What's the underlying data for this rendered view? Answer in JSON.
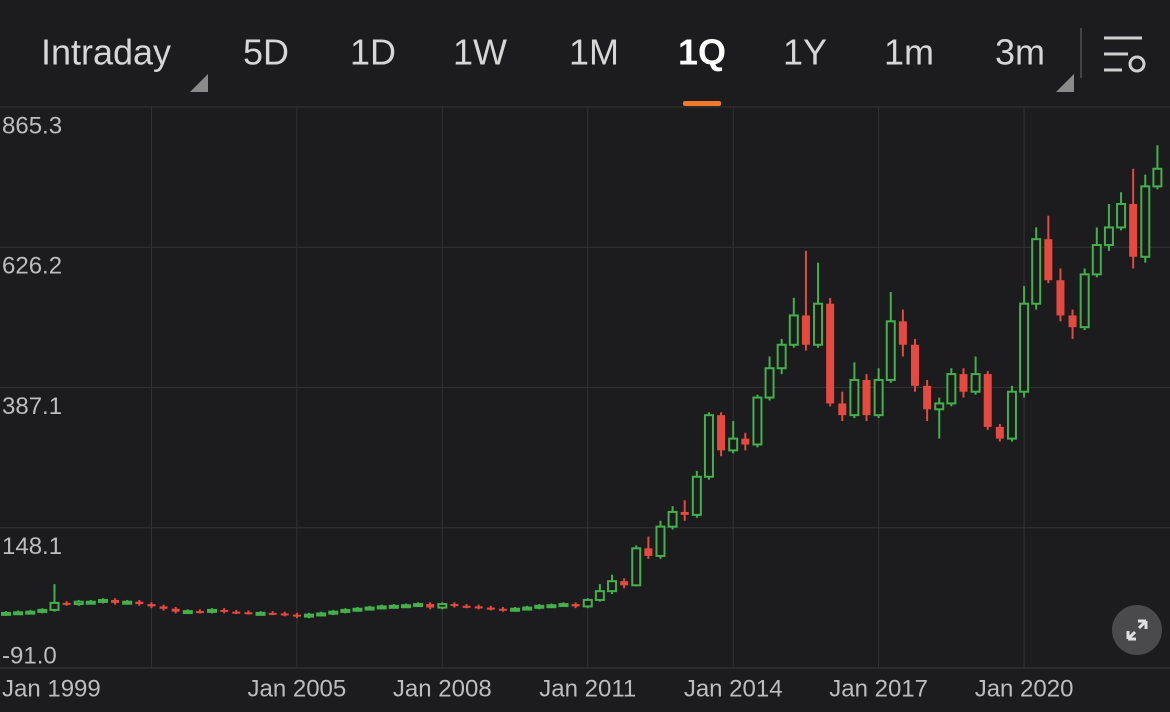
{
  "tabs": [
    "Intraday",
    "5D",
    "1D",
    "1W",
    "1M",
    "1Q",
    "1Y",
    "1m",
    "3m"
  ],
  "active_tab": 5,
  "chart_data": {
    "type": "candlestick",
    "up_color": "#43b04c",
    "down_color": "#e5493f",
    "grid": true,
    "ylim": [
      -91,
      865.3
    ],
    "yticks": [
      865.3,
      626.2,
      387.1,
      148.1,
      {
        "value": -91,
        "label": "-91.0"
      }
    ],
    "categories": [
      "Jan 1999",
      null,
      null,
      null,
      null,
      null,
      null,
      null,
      null,
      null,
      null,
      null,
      null,
      null,
      null,
      null,
      null,
      null,
      null,
      null,
      null,
      null,
      null,
      null,
      "Jan 2005",
      null,
      null,
      null,
      null,
      null,
      null,
      null,
      null,
      null,
      null,
      null,
      "Jan 2008",
      null,
      null,
      null,
      null,
      null,
      null,
      null,
      null,
      null,
      null,
      null,
      "Jan 2011",
      null,
      null,
      null,
      null,
      null,
      null,
      null,
      null,
      null,
      null,
      null,
      "Jan 2014",
      null,
      null,
      null,
      null,
      null,
      null,
      null,
      null,
      null,
      null,
      null,
      "Jan 2017",
      null,
      null,
      null,
      null,
      null,
      null,
      null,
      null,
      null,
      null,
      null,
      "Jan 2020",
      null,
      null,
      null,
      null,
      null,
      null,
      null,
      null,
      null,
      null,
      null
    ],
    "open": [
      1,
      3,
      4,
      5,
      8,
      20,
      18,
      22,
      22,
      25,
      20,
      22,
      18,
      14,
      10,
      5,
      6,
      5,
      8,
      5,
      4,
      3,
      3,
      2,
      0,
      -3,
      0,
      2,
      5,
      8,
      10,
      12,
      14,
      15,
      16,
      18,
      12,
      18,
      15,
      14,
      12,
      10,
      8,
      10,
      12,
      15,
      16,
      18,
      14,
      25,
      40,
      57,
      50,
      113,
      100,
      150,
      175,
      170,
      235,
      340,
      280,
      300,
      290,
      370,
      420,
      460,
      510,
      460,
      530,
      360,
      340,
      400,
      340,
      400,
      500,
      460,
      390,
      350,
      360,
      410,
      380,
      410,
      320,
      300,
      380,
      530,
      640,
      570,
      510,
      490,
      580,
      630,
      660,
      700,
      610,
      730
    ],
    "high": [
      6,
      7,
      8,
      11,
      52,
      23,
      25,
      25,
      28,
      28,
      25,
      25,
      21,
      17,
      13,
      9,
      9,
      11,
      11,
      8,
      7,
      6,
      6,
      5,
      3,
      3,
      5,
      8,
      11,
      13,
      15,
      17,
      18,
      19,
      21,
      21,
      21,
      21,
      18,
      17,
      15,
      13,
      13,
      15,
      18,
      19,
      21,
      21,
      28,
      52,
      68,
      62,
      118,
      133,
      160,
      185,
      195,
      245,
      345,
      345,
      330,
      310,
      375,
      440,
      470,
      540,
      620,
      600,
      540,
      380,
      430,
      410,
      420,
      550,
      520,
      470,
      400,
      370,
      420,
      420,
      440,
      415,
      325,
      390,
      560,
      660,
      680,
      590,
      520,
      590,
      660,
      700,
      720,
      760,
      750,
      800
    ],
    "low": [
      -2,
      0,
      1,
      2,
      5,
      15,
      15,
      19,
      19,
      17,
      17,
      15,
      11,
      7,
      2,
      2,
      2,
      2,
      2,
      1,
      0,
      0,
      -1,
      -3,
      -6,
      -6,
      -3,
      -1,
      2,
      5,
      7,
      9,
      11,
      12,
      13,
      9,
      9,
      12,
      11,
      9,
      7,
      5,
      5,
      7,
      9,
      12,
      13,
      11,
      11,
      22,
      35,
      45,
      48,
      95,
      95,
      145,
      160,
      165,
      230,
      270,
      275,
      280,
      285,
      365,
      410,
      455,
      450,
      455,
      355,
      330,
      335,
      330,
      335,
      395,
      440,
      380,
      330,
      300,
      355,
      370,
      375,
      315,
      295,
      295,
      370,
      520,
      565,
      500,
      470,
      485,
      575,
      620,
      655,
      590,
      600,
      725
    ],
    "close": [
      3,
      4,
      5,
      8,
      20,
      18,
      22,
      22,
      25,
      20,
      22,
      18,
      14,
      10,
      5,
      6,
      5,
      8,
      5,
      4,
      3,
      3,
      2,
      0,
      -3,
      0,
      2,
      5,
      8,
      10,
      12,
      14,
      15,
      16,
      18,
      12,
      18,
      15,
      14,
      12,
      10,
      8,
      10,
      12,
      15,
      16,
      18,
      14,
      25,
      40,
      57,
      50,
      113,
      100,
      150,
      175,
      170,
      235,
      340,
      280,
      300,
      290,
      370,
      420,
      460,
      510,
      460,
      530,
      360,
      340,
      400,
      340,
      400,
      500,
      460,
      390,
      350,
      360,
      410,
      380,
      410,
      320,
      300,
      380,
      530,
      640,
      570,
      510,
      490,
      580,
      630,
      660,
      700,
      610,
      730,
      760
    ]
  }
}
